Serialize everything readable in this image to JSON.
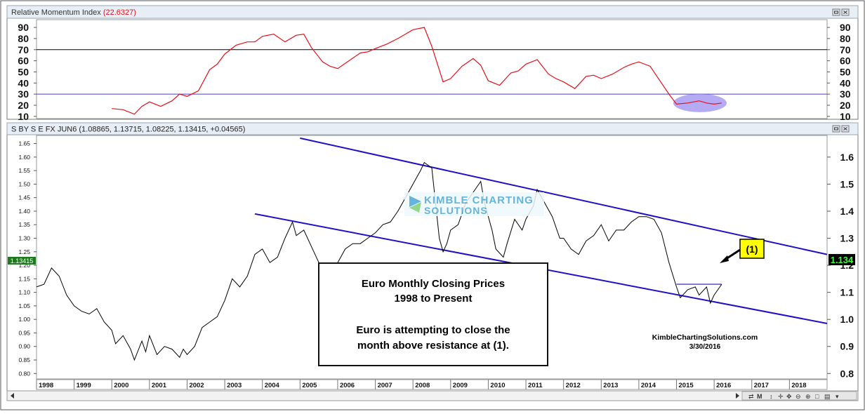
{
  "top_panel": {
    "title": "Relative Momentum Index",
    "value": "(22.6327)"
  },
  "main_panel": {
    "title": "S BY S E FX JUN6 (1.08865, 1.13715, 1.08225, 1.13415, +0.04565)"
  },
  "price_tag_left": "1.13415",
  "price_tag_right": "1.134",
  "callout_label": "(1)",
  "watermark": {
    "line1": "KIMBLE CHARTING",
    "line2": "SOLUTIONS"
  },
  "annotation": {
    "line1": "Euro Monthly Closing Prices",
    "line2": "1998 to Present",
    "line3": "Euro is attempting to close the",
    "line4": "month above resistance at (1)."
  },
  "credit": {
    "site": "KimbleChartingSolutions.com",
    "date": "3/30/2016"
  },
  "colors": {
    "rmi_line": "#e8101a",
    "price_line": "#000000",
    "channel": "#1f10c8",
    "upper_ref_line": "#000000",
    "lower_ref_line": "#4a3ccc",
    "highlight": "#9b8ff0",
    "callout_bg": "#ffff00",
    "right_tag_bg": "#000000",
    "right_tag_text": "#3cff3c",
    "left_tag_bg": "#1f7a1f",
    "watermark": "#4aa8d6"
  },
  "chart_data": [
    {
      "type": "line",
      "title": "Relative Momentum Index",
      "ylim": [
        8,
        97
      ],
      "yticks": [
        10,
        20,
        30,
        40,
        50,
        60,
        70,
        80,
        90
      ],
      "reference_lines": [
        70,
        30
      ],
      "series": [
        {
          "name": "Relative Momentum Index",
          "x": [
            2000.0,
            2000.3,
            2000.6,
            2000.8,
            2001.0,
            2001.3,
            2001.6,
            2001.8,
            2002.0,
            2002.3,
            2002.6,
            2002.8,
            2003.0,
            2003.3,
            2003.6,
            2003.8,
            2004.0,
            2004.3,
            2004.6,
            2004.9,
            2005.1,
            2005.3,
            2005.6,
            2005.8,
            2006.0,
            2006.3,
            2006.6,
            2006.8,
            2007.0,
            2007.3,
            2007.6,
            2007.8,
            2008.0,
            2008.3,
            2008.5,
            2008.8,
            2009.0,
            2009.3,
            2009.6,
            2009.8,
            2010.0,
            2010.3,
            2010.6,
            2010.8,
            2011.0,
            2011.3,
            2011.6,
            2011.8,
            2012.0,
            2012.3,
            2012.6,
            2012.8,
            2013.0,
            2013.3,
            2013.6,
            2013.8,
            2014.0,
            2014.3,
            2014.6,
            2014.8,
            2015.0,
            2015.3,
            2015.6,
            2015.8,
            2016.0,
            2016.2
          ],
          "values": [
            17,
            16,
            12,
            19,
            23,
            19,
            24,
            30,
            28,
            33,
            52,
            57,
            66,
            74,
            77,
            77,
            82,
            84,
            77,
            83,
            84,
            72,
            59,
            55,
            53,
            60,
            67,
            68,
            71,
            75,
            80,
            84,
            88,
            90,
            73,
            41,
            44,
            55,
            62,
            56,
            42,
            38,
            49,
            51,
            57,
            61,
            48,
            44,
            41,
            35,
            46,
            47,
            44,
            48,
            54,
            57,
            59,
            55,
            40,
            30,
            21,
            22,
            24,
            22,
            21,
            22
          ]
        }
      ]
    },
    {
      "type": "line",
      "title": "S BY S E FX JUN6 (1.08865, 1.13715, 1.08225, 1.13415, +0.04565)",
      "xlabel": "",
      "ylabel": "",
      "x_categories": [
        "1998",
        "1999",
        "2000",
        "2001",
        "2002",
        "2003",
        "2004",
        "2005",
        "2006",
        "2007",
        "2008",
        "2009",
        "2010",
        "2011",
        "2012",
        "2013",
        "2014",
        "2015",
        "2016",
        "2017",
        "2018"
      ],
      "xlim": [
        1998,
        2019
      ],
      "ylim": [
        0.78,
        1.68
      ],
      "left_yticks": [
        "0.80",
        "0.85",
        "0.90",
        "0.95",
        "1.00",
        "1.05",
        "1.10",
        "1.15",
        "1.20",
        "1.25",
        "1.30",
        "1.35",
        "1.40",
        "1.45",
        "1.50",
        "1.55",
        "1.60",
        "1.65"
      ],
      "right_yticks": [
        "0.8",
        "0.9",
        "1.0",
        "1.1",
        "1.2",
        "1.3",
        "1.4",
        "1.5",
        "1.6"
      ],
      "series": [
        {
          "name": "S BY S E FX JUN6",
          "x": [
            1998.0,
            1998.2,
            1998.4,
            1998.6,
            1998.8,
            1999.0,
            1999.2,
            1999.4,
            1999.6,
            1999.8,
            2000.0,
            2000.1,
            2000.3,
            2000.5,
            2000.6,
            2000.8,
            2000.9,
            2001.0,
            2001.2,
            2001.4,
            2001.6,
            2001.8,
            2001.9,
            2002.0,
            2002.2,
            2002.4,
            2002.6,
            2002.8,
            2003.0,
            2003.2,
            2003.4,
            2003.6,
            2003.8,
            2004.0,
            2004.2,
            2004.4,
            2004.6,
            2004.8,
            2004.9,
            2005.1,
            2005.3,
            2005.5,
            2005.7,
            2005.9,
            2006.0,
            2006.2,
            2006.4,
            2006.6,
            2006.8,
            2007.0,
            2007.2,
            2007.4,
            2007.6,
            2007.8,
            2008.0,
            2008.2,
            2008.3,
            2008.5,
            2008.7,
            2008.8,
            2008.9,
            2009.0,
            2009.2,
            2009.4,
            2009.6,
            2009.8,
            2009.9,
            2010.1,
            2010.2,
            2010.4,
            2010.5,
            2010.7,
            2010.9,
            2011.0,
            2011.2,
            2011.3,
            2011.5,
            2011.7,
            2011.9,
            2012.0,
            2012.2,
            2012.4,
            2012.6,
            2012.8,
            2013.0,
            2013.2,
            2013.4,
            2013.6,
            2013.8,
            2014.0,
            2014.2,
            2014.4,
            2014.6,
            2014.8,
            2015.0,
            2015.1,
            2015.3,
            2015.5,
            2015.6,
            2015.8,
            2015.9,
            2016.0,
            2016.2
          ],
          "values": [
            1.12,
            1.13,
            1.19,
            1.16,
            1.09,
            1.05,
            1.03,
            1.02,
            1.04,
            0.99,
            0.96,
            0.91,
            0.94,
            0.89,
            0.85,
            0.92,
            0.88,
            0.94,
            0.87,
            0.9,
            0.89,
            0.86,
            0.89,
            0.87,
            0.9,
            0.97,
            0.99,
            1.01,
            1.07,
            1.15,
            1.12,
            1.16,
            1.24,
            1.26,
            1.21,
            1.23,
            1.3,
            1.36,
            1.31,
            1.33,
            1.27,
            1.21,
            1.19,
            1.18,
            1.21,
            1.26,
            1.28,
            1.28,
            1.3,
            1.32,
            1.35,
            1.36,
            1.4,
            1.45,
            1.5,
            1.55,
            1.58,
            1.56,
            1.3,
            1.25,
            1.28,
            1.33,
            1.35,
            1.43,
            1.47,
            1.51,
            1.43,
            1.33,
            1.26,
            1.23,
            1.28,
            1.37,
            1.33,
            1.37,
            1.42,
            1.48,
            1.43,
            1.38,
            1.3,
            1.3,
            1.26,
            1.24,
            1.29,
            1.31,
            1.35,
            1.29,
            1.33,
            1.33,
            1.36,
            1.38,
            1.38,
            1.37,
            1.32,
            1.21,
            1.12,
            1.08,
            1.11,
            1.12,
            1.09,
            1.12,
            1.06,
            1.09,
            1.13
          ]
        }
      ],
      "trendlines": [
        {
          "x": [
            2005.0,
            2019.0
          ],
          "values": [
            1.67,
            1.24
          ]
        },
        {
          "x": [
            2003.8,
            2019.0
          ],
          "values": [
            1.39,
            0.985
          ]
        },
        {
          "x": [
            2015.0,
            2016.2
          ],
          "values": [
            1.13,
            1.13
          ]
        }
      ]
    }
  ]
}
